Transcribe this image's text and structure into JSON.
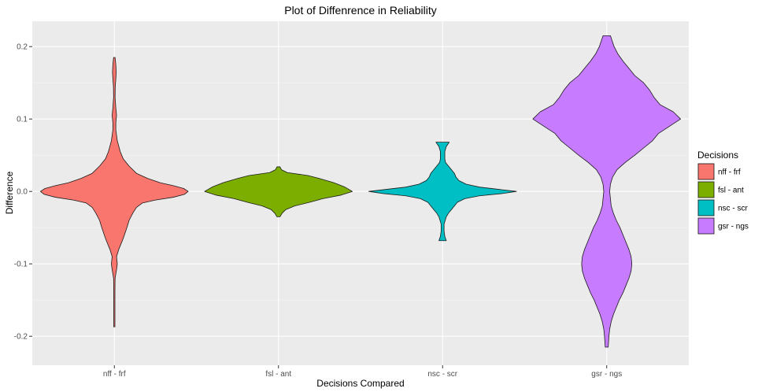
{
  "chart_data": {
    "type": "violin",
    "title": "Plot of Diffenrence in Reliability",
    "xlabel": "Decisions Compared",
    "ylabel": "Difference",
    "categories": [
      "nff - frf",
      "fsl - ant",
      "nsc - scr",
      "gsr - ngs"
    ],
    "y_ticks": [
      -0.2,
      -0.1,
      0.0,
      0.1,
      0.2
    ],
    "y_tick_labels": [
      "-0.2",
      "-0.1",
      "0.0",
      "0.1",
      "0.2"
    ],
    "ylim": [
      -0.24,
      0.235
    ],
    "grid": true,
    "legend": {
      "title": "Decisions",
      "position": "right",
      "entries": [
        "nff - frf",
        "fsl - ant",
        "nsc - scr",
        "gsr - ngs"
      ]
    },
    "series": [
      {
        "category": "nff - frf",
        "color": "#F8766D",
        "density": [
          [
            0.185,
            0.01
          ],
          [
            0.175,
            0.02
          ],
          [
            0.165,
            0.025
          ],
          [
            0.155,
            0.02
          ],
          [
            0.145,
            0.012
          ],
          [
            0.13,
            0.01
          ],
          [
            0.115,
            0.02
          ],
          [
            0.105,
            0.03
          ],
          [
            0.095,
            0.02
          ],
          [
            0.085,
            0.02
          ],
          [
            0.07,
            0.04
          ],
          [
            0.055,
            0.08
          ],
          [
            0.045,
            0.12
          ],
          [
            0.035,
            0.2
          ],
          [
            0.025,
            0.3
          ],
          [
            0.018,
            0.45
          ],
          [
            0.012,
            0.62
          ],
          [
            0.008,
            0.8
          ],
          [
            0.004,
            0.94
          ],
          [
            0.0,
            1.0
          ],
          [
            -0.004,
            0.95
          ],
          [
            -0.008,
            0.8
          ],
          [
            -0.012,
            0.55
          ],
          [
            -0.016,
            0.38
          ],
          [
            -0.022,
            0.3
          ],
          [
            -0.03,
            0.25
          ],
          [
            -0.04,
            0.2
          ],
          [
            -0.05,
            0.17
          ],
          [
            -0.065,
            0.12
          ],
          [
            -0.08,
            0.06
          ],
          [
            -0.09,
            0.03
          ],
          [
            -0.1,
            0.04
          ],
          [
            -0.108,
            0.03
          ],
          [
            -0.12,
            0.01
          ],
          [
            -0.14,
            0.008
          ],
          [
            -0.16,
            0.008
          ],
          [
            -0.187,
            0.008
          ]
        ]
      },
      {
        "category": "fsl - ant",
        "color": "#7CAE00",
        "density": [
          [
            0.034,
            0.02
          ],
          [
            0.03,
            0.04
          ],
          [
            0.026,
            0.12
          ],
          [
            0.022,
            0.4
          ],
          [
            0.018,
            0.55
          ],
          [
            0.012,
            0.75
          ],
          [
            0.006,
            0.9
          ],
          [
            0.0,
            1.0
          ],
          [
            -0.005,
            0.85
          ],
          [
            -0.01,
            0.6
          ],
          [
            -0.015,
            0.42
          ],
          [
            -0.02,
            0.22
          ],
          [
            -0.025,
            0.1
          ],
          [
            -0.03,
            0.05
          ],
          [
            -0.035,
            0.02
          ]
        ]
      },
      {
        "category": "nsc - scr",
        "color": "#00BFC4",
        "density": [
          [
            0.068,
            0.09
          ],
          [
            0.062,
            0.05
          ],
          [
            0.055,
            0.03
          ],
          [
            0.045,
            0.03
          ],
          [
            0.04,
            0.04
          ],
          [
            0.035,
            0.08
          ],
          [
            0.03,
            0.12
          ],
          [
            0.025,
            0.16
          ],
          [
            0.02,
            0.18
          ],
          [
            0.015,
            0.22
          ],
          [
            0.01,
            0.32
          ],
          [
            0.006,
            0.5
          ],
          [
            0.003,
            0.75
          ],
          [
            0.0,
            1.0
          ],
          [
            -0.003,
            0.8
          ],
          [
            -0.006,
            0.5
          ],
          [
            -0.01,
            0.3
          ],
          [
            -0.015,
            0.2
          ],
          [
            -0.02,
            0.16
          ],
          [
            -0.025,
            0.12
          ],
          [
            -0.03,
            0.08
          ],
          [
            -0.035,
            0.05
          ],
          [
            -0.045,
            0.02
          ],
          [
            -0.055,
            0.02
          ],
          [
            -0.062,
            0.03
          ],
          [
            -0.068,
            0.05
          ]
        ]
      },
      {
        "category": "gsr - ngs",
        "color": "#C77CFF",
        "density": [
          [
            0.215,
            0.05
          ],
          [
            0.2,
            0.1
          ],
          [
            0.19,
            0.15
          ],
          [
            0.18,
            0.22
          ],
          [
            0.17,
            0.3
          ],
          [
            0.16,
            0.38
          ],
          [
            0.15,
            0.5
          ],
          [
            0.14,
            0.58
          ],
          [
            0.13,
            0.64
          ],
          [
            0.12,
            0.72
          ],
          [
            0.11,
            0.9
          ],
          [
            0.1,
            1.0
          ],
          [
            0.09,
            0.85
          ],
          [
            0.08,
            0.7
          ],
          [
            0.07,
            0.62
          ],
          [
            0.06,
            0.5
          ],
          [
            0.05,
            0.38
          ],
          [
            0.04,
            0.25
          ],
          [
            0.03,
            0.14
          ],
          [
            0.02,
            0.08
          ],
          [
            0.01,
            0.05
          ],
          [
            0.0,
            0.04
          ],
          [
            -0.01,
            0.05
          ],
          [
            -0.02,
            0.06
          ],
          [
            -0.03,
            0.09
          ],
          [
            -0.04,
            0.13
          ],
          [
            -0.05,
            0.18
          ],
          [
            -0.06,
            0.22
          ],
          [
            -0.07,
            0.26
          ],
          [
            -0.08,
            0.3
          ],
          [
            -0.09,
            0.33
          ],
          [
            -0.1,
            0.34
          ],
          [
            -0.11,
            0.33
          ],
          [
            -0.12,
            0.3
          ],
          [
            -0.13,
            0.26
          ],
          [
            -0.14,
            0.22
          ],
          [
            -0.15,
            0.17
          ],
          [
            -0.16,
            0.13
          ],
          [
            -0.17,
            0.09
          ],
          [
            -0.18,
            0.06
          ],
          [
            -0.19,
            0.04
          ],
          [
            -0.2,
            0.03
          ],
          [
            -0.215,
            0.02
          ]
        ]
      }
    ]
  }
}
